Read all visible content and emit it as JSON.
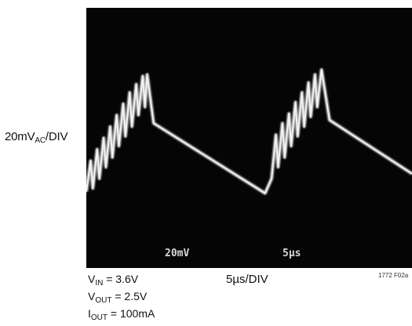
{
  "y_label": {
    "prefix": "20mV",
    "sub": "AC",
    "suffix": "/DIV"
  },
  "x_label": "5µs/DIV",
  "conditions": {
    "vin": {
      "var": "V",
      "sub": "IN",
      "value": " = 3.6V"
    },
    "vout": {
      "var": "V",
      "sub": "OUT",
      "value": " = 2.5V"
    },
    "iout": {
      "var": "I",
      "sub": "OUT",
      "value": " = 100mA"
    }
  },
  "figure_id": "1772 F02a",
  "screen_readout": {
    "ch_scale": "20mV",
    "time_scale": "5µs"
  },
  "colors": {
    "screen": "#050505",
    "trace": "#f2f2f2"
  },
  "chart_data": {
    "type": "line",
    "title": "",
    "xlabel": "5µs/DIV",
    "ylabel": "20mVAC/DIV",
    "grid": false,
    "xlim": [
      0,
      45
    ],
    "ylim": [
      -80,
      80
    ],
    "x_unit": "µs",
    "y_unit": "mV",
    "series": [
      {
        "values": [
          [
            0.0,
            -33
          ],
          [
            0.6,
            -14
          ],
          [
            0.9,
            -31
          ],
          [
            1.5,
            -7
          ],
          [
            1.8,
            -25
          ],
          [
            2.4,
            0
          ],
          [
            2.7,
            -18
          ],
          [
            3.3,
            7
          ],
          [
            3.6,
            -12
          ],
          [
            4.2,
            14
          ],
          [
            4.5,
            -5
          ],
          [
            5.1,
            21
          ],
          [
            5.4,
            1
          ],
          [
            6.0,
            28
          ],
          [
            6.3,
            7
          ],
          [
            6.9,
            33
          ],
          [
            7.2,
            14
          ],
          [
            7.8,
            38
          ],
          [
            8.1,
            19
          ],
          [
            8.4,
            39
          ],
          [
            9.3,
            9
          ],
          [
            24.7,
            -34
          ],
          [
            25.6,
            -25
          ],
          [
            26.2,
            2
          ],
          [
            26.5,
            -18
          ],
          [
            27.1,
            9
          ],
          [
            27.4,
            -12
          ],
          [
            28.0,
            15
          ],
          [
            28.3,
            -5
          ],
          [
            28.9,
            22
          ],
          [
            29.2,
            1
          ],
          [
            29.8,
            28
          ],
          [
            30.1,
            7
          ],
          [
            30.7,
            34
          ],
          [
            31.0,
            13
          ],
          [
            31.6,
            39
          ],
          [
            31.9,
            19
          ],
          [
            32.5,
            42
          ],
          [
            33.6,
            11
          ],
          [
            45.0,
            -22
          ]
        ]
      }
    ]
  }
}
